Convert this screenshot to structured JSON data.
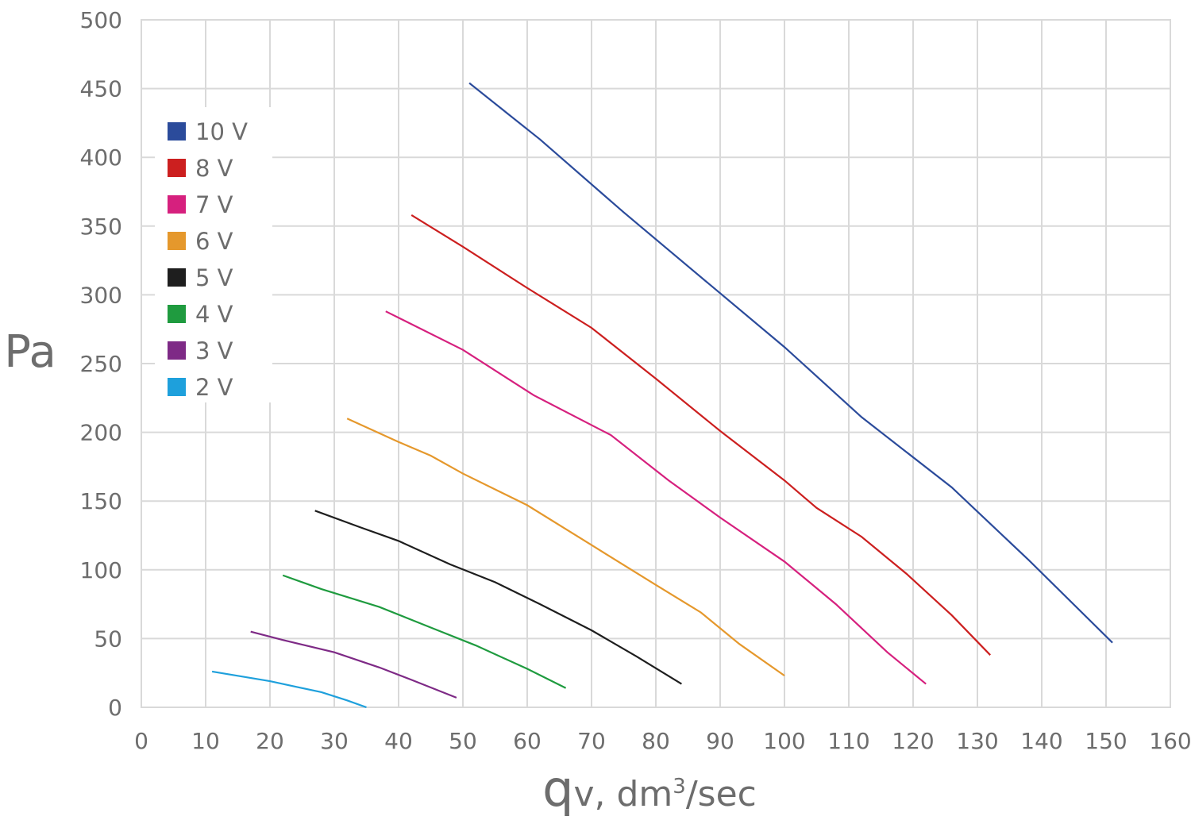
{
  "chart_data": {
    "type": "line",
    "title": "",
    "ylabel": "Pa",
    "xlabel": {
      "q": "q",
      "rest": "v, dm",
      "sup": "3",
      "tail": "/sec"
    },
    "xlim": [
      0,
      160
    ],
    "ylim": [
      0,
      500
    ],
    "x_ticks": [
      "0",
      "10",
      "20",
      "30",
      "40",
      "50",
      "60",
      "70",
      "80",
      "90",
      "100",
      "110",
      "120",
      "130",
      "140",
      "150",
      "160"
    ],
    "y_ticks": [
      "0",
      "50",
      "100",
      "150",
      "200",
      "250",
      "300",
      "350",
      "400",
      "450",
      "500"
    ],
    "grid": true,
    "legend_position": "top-left",
    "series": [
      {
        "name": "10 V",
        "color": "#2b4b9b",
        "points": [
          [
            51,
            454
          ],
          [
            62,
            413
          ],
          [
            75,
            360
          ],
          [
            88,
            309
          ],
          [
            100,
            262
          ],
          [
            112,
            211
          ],
          [
            126,
            160
          ],
          [
            138,
            107
          ],
          [
            151,
            47
          ]
        ]
      },
      {
        "name": "8 V",
        "color": "#cc1f1f",
        "points": [
          [
            42,
            358
          ],
          [
            50,
            335
          ],
          [
            60,
            305
          ],
          [
            70,
            276
          ],
          [
            80,
            239
          ],
          [
            90,
            201
          ],
          [
            100,
            165
          ],
          [
            105,
            145
          ],
          [
            112,
            124
          ],
          [
            119,
            97
          ],
          [
            126,
            67
          ],
          [
            132,
            38
          ]
        ]
      },
      {
        "name": "7 V",
        "color": "#d6207e",
        "points": [
          [
            38,
            288
          ],
          [
            50,
            260
          ],
          [
            61,
            227
          ],
          [
            73,
            198
          ],
          [
            82,
            165
          ],
          [
            90,
            138
          ],
          [
            100,
            106
          ],
          [
            108,
            75
          ],
          [
            116,
            40
          ],
          [
            122,
            17
          ]
        ]
      },
      {
        "name": "6 V",
        "color": "#e5982c",
        "points": [
          [
            32,
            210
          ],
          [
            40,
            193
          ],
          [
            45,
            183
          ],
          [
            50,
            170
          ],
          [
            60,
            147
          ],
          [
            70,
            118
          ],
          [
            80,
            89
          ],
          [
            87,
            69
          ],
          [
            93,
            46
          ],
          [
            100,
            23
          ]
        ]
      },
      {
        "name": "5 V",
        "color": "#1e1e1e",
        "points": [
          [
            27,
            143
          ],
          [
            34,
            131
          ],
          [
            40,
            121
          ],
          [
            48,
            104
          ],
          [
            55,
            91
          ],
          [
            62,
            75
          ],
          [
            70,
            56
          ],
          [
            77,
            37
          ],
          [
            84,
            17
          ]
        ]
      },
      {
        "name": "4 V",
        "color": "#1f9b3f",
        "points": [
          [
            22,
            96
          ],
          [
            28,
            86
          ],
          [
            37,
            73
          ],
          [
            45,
            58
          ],
          [
            52,
            45
          ],
          [
            60,
            28
          ],
          [
            66,
            14
          ]
        ]
      },
      {
        "name": "3 V",
        "color": "#7e2a86",
        "points": [
          [
            17,
            55
          ],
          [
            22,
            49
          ],
          [
            30,
            40
          ],
          [
            37,
            29
          ],
          [
            42,
            20
          ],
          [
            49,
            7
          ]
        ]
      },
      {
        "name": "2 V",
        "color": "#1ea0dc",
        "points": [
          [
            11,
            26
          ],
          [
            20,
            19
          ],
          [
            28,
            11
          ],
          [
            32,
            5
          ],
          [
            35,
            0
          ]
        ]
      }
    ]
  }
}
